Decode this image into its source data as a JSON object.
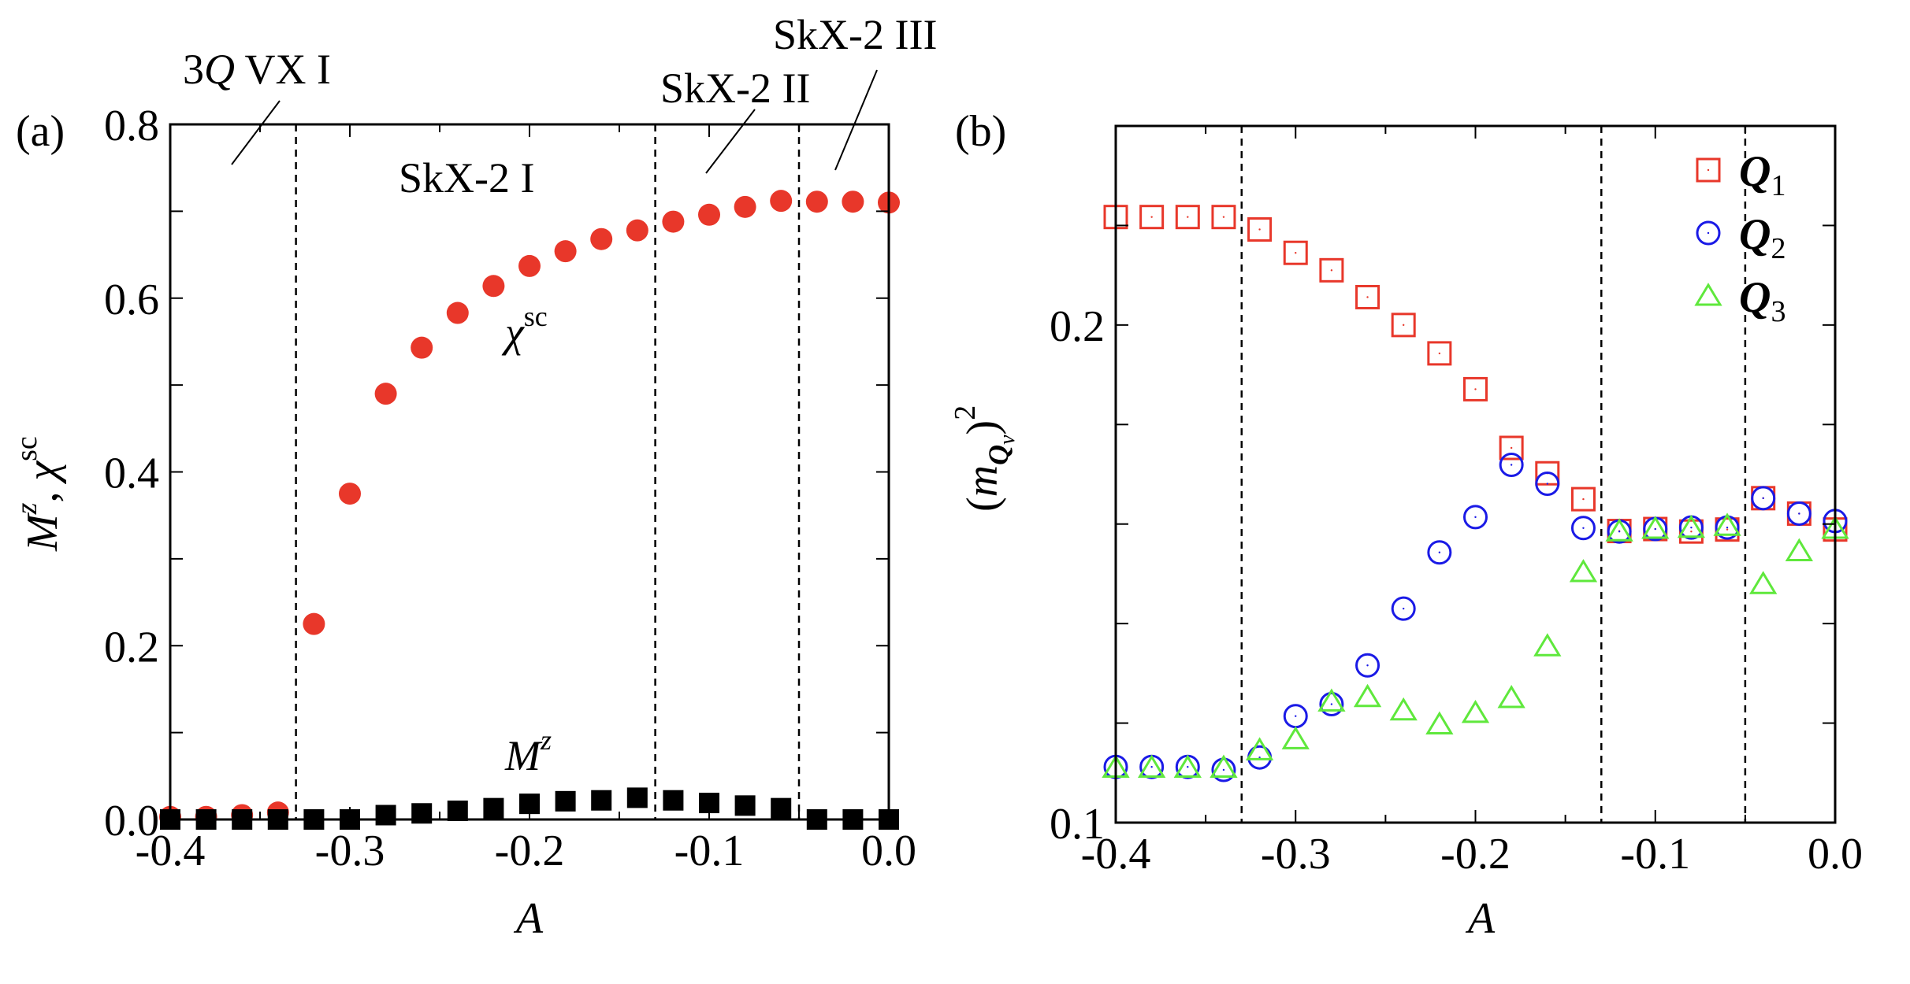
{
  "chart_data": [
    {
      "type": "scatter",
      "panel_label": "(a)",
      "xlabel": "A",
      "ylabel_parts": {
        "m": "M",
        "m_sup": "z",
        "sep": ", ",
        "chi": "χ",
        "chi_sup": "sc"
      },
      "xlim": [
        -0.4,
        0.0
      ],
      "ylim": [
        0.0,
        0.8
      ],
      "xticks": [
        -0.4,
        -0.3,
        -0.2,
        -0.1,
        0.0
      ],
      "xtick_labels": [
        "-0.4",
        "-0.3",
        "-0.2",
        "-0.1",
        "0.0"
      ],
      "yticks": [
        0.0,
        0.2,
        0.4,
        0.6,
        0.8
      ],
      "ytick_labels": [
        "0.0",
        "0.2",
        "0.4",
        "0.6",
        "0.8"
      ],
      "phase_boundaries": [
        -0.33,
        -0.13,
        -0.05
      ],
      "annotations": {
        "vx": {
          "pre": "3",
          "q": "Q",
          "post": " VX I"
        },
        "skx1": "SkX-2 I",
        "skx2": "SkX-2 II",
        "skx3": "SkX-2 III"
      },
      "x": [
        -0.4,
        -0.38,
        -0.36,
        -0.34,
        -0.32,
        -0.3,
        -0.28,
        -0.26,
        -0.24,
        -0.22,
        -0.2,
        -0.18,
        -0.16,
        -0.14,
        -0.12,
        -0.1,
        -0.08,
        -0.06,
        -0.04,
        -0.02,
        0.0
      ],
      "series": [
        {
          "name": "chi_sc",
          "label": "χ",
          "label_sup": "sc",
          "color": "#e8372a",
          "marker": "filled-circle",
          "values": [
            0.003,
            0.003,
            0.005,
            0.008,
            0.225,
            0.375,
            0.49,
            0.543,
            0.583,
            0.614,
            0.637,
            0.654,
            0.668,
            0.678,
            0.688,
            0.696,
            0.705,
            0.712,
            0.711,
            0.711,
            0.71
          ]
        },
        {
          "name": "Mz",
          "label": "M",
          "label_sup": "z",
          "color": "#000000",
          "marker": "filled-square",
          "values": [
            0.0,
            0.0,
            0.0,
            0.0,
            0.0,
            0.0,
            0.005,
            0.007,
            0.01,
            0.013,
            0.018,
            0.021,
            0.022,
            0.025,
            0.022,
            0.019,
            0.016,
            0.013,
            0.0,
            0.0,
            0.0
          ]
        }
      ]
    },
    {
      "type": "scatter",
      "panel_label": "(b)",
      "xlabel": "A",
      "ylabel_parts": {
        "open": "(",
        "m": "m",
        "sub": "Q",
        "subsub": "ν",
        "close": ")",
        "sup": "2"
      },
      "xlim": [
        -0.4,
        0.0
      ],
      "ylim": [
        0.1,
        0.24
      ],
      "xticks": [
        -0.4,
        -0.3,
        -0.2,
        -0.1,
        0.0
      ],
      "xtick_labels": [
        "-0.4",
        "-0.3",
        "-0.2",
        "-0.1",
        "0.0"
      ],
      "yticks": [
        0.1,
        0.2
      ],
      "ytick_labels": [
        "0.1",
        "0.2"
      ],
      "minor_yticks": [
        0.12,
        0.14,
        0.16,
        0.18,
        0.22
      ],
      "phase_boundaries": [
        -0.33,
        -0.13,
        -0.05
      ],
      "legend_position": "top-right",
      "x": [
        -0.4,
        -0.38,
        -0.36,
        -0.34,
        -0.32,
        -0.3,
        -0.28,
        -0.26,
        -0.24,
        -0.22,
        -0.2,
        -0.18,
        -0.16,
        -0.14,
        -0.12,
        -0.1,
        -0.08,
        -0.06,
        -0.04,
        -0.02,
        0.0
      ],
      "series": [
        {
          "name": "Q1",
          "label": "Q",
          "label_sub": "1",
          "color": "#e8372a",
          "marker": "open-square",
          "values": [
            0.2217,
            0.2217,
            0.2217,
            0.2217,
            0.2192,
            0.2145,
            0.211,
            0.2056,
            0.2,
            0.1943,
            0.1871,
            0.1753,
            0.1702,
            0.165,
            0.1586,
            0.159,
            0.1585,
            0.1589,
            0.1652,
            0.1621,
            0.1589
          ]
        },
        {
          "name": "Q2",
          "label": "Q",
          "label_sub": "2",
          "color": "#1a1ae6",
          "marker": "open-circle",
          "values": [
            0.1112,
            0.1112,
            0.1112,
            0.1106,
            0.1131,
            0.1214,
            0.1238,
            0.1316,
            0.143,
            0.1543,
            0.1614,
            0.1719,
            0.1681,
            0.1592,
            0.1585,
            0.159,
            0.1593,
            0.1593,
            0.1652,
            0.1621,
            0.1606
          ]
        },
        {
          "name": "Q3",
          "label": "Q",
          "label_sub": "3",
          "color": "#5fe83c",
          "marker": "open-triangle",
          "values": [
            0.111,
            0.111,
            0.111,
            0.111,
            0.1145,
            0.1167,
            0.1243,
            0.1252,
            0.1225,
            0.1197,
            0.122,
            0.125,
            0.1354,
            0.1503,
            0.1585,
            0.159,
            0.1592,
            0.1596,
            0.1479,
            0.1545,
            0.159
          ]
        }
      ]
    }
  ]
}
